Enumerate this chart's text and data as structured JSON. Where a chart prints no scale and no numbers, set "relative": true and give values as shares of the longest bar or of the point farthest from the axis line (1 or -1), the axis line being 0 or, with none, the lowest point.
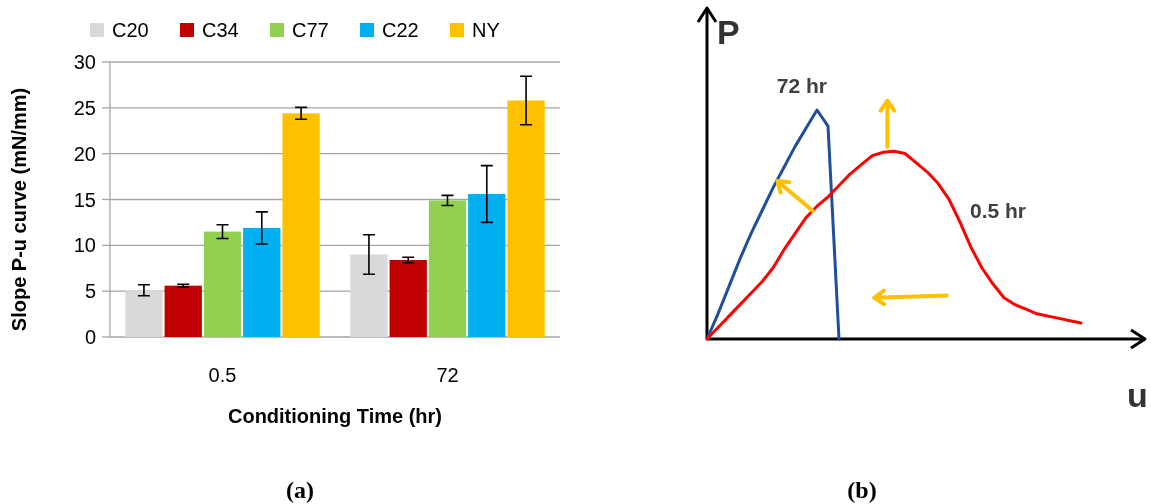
{
  "chart_data": [
    {
      "type": "bar",
      "categories": [
        "0.5",
        "72"
      ],
      "xlabel": "Conditioning Time (hr)",
      "ylabel": "Slope P-u curve (mN/mm)",
      "ylim": [
        0,
        30
      ],
      "yticks": [
        0,
        5,
        10,
        15,
        20,
        25,
        30
      ],
      "grid": "y",
      "legend": "top",
      "annotations": [
        "(a)"
      ],
      "series": [
        {
          "name": "C20",
          "color": "#d9d9d9",
          "values": [
            5.1,
            9.0
          ],
          "errors": [
            0.6,
            2.15
          ]
        },
        {
          "name": "C34",
          "color": "#c00000",
          "values": [
            5.6,
            8.4
          ],
          "errors": [
            0.15,
            0.3
          ]
        },
        {
          "name": "C77",
          "color": "#92d050",
          "values": [
            11.5,
            14.9
          ],
          "errors": [
            0.75,
            0.55
          ]
        },
        {
          "name": "C22",
          "color": "#00b0f0",
          "values": [
            11.9,
            15.6
          ],
          "errors": [
            1.75,
            3.1
          ]
        },
        {
          "name": "NY",
          "color": "#ffc000",
          "values": [
            24.4,
            25.8
          ],
          "errors": [
            0.65,
            2.65
          ]
        }
      ]
    },
    {
      "type": "line",
      "relative": true,
      "categories": [
        null,
        null,
        null,
        null,
        null,
        null,
        null,
        null,
        null,
        null,
        null,
        null,
        null,
        null,
        null,
        null,
        null,
        null,
        null,
        null,
        null,
        null,
        null,
        null,
        null,
        null,
        null,
        null,
        null,
        null,
        null,
        null,
        null,
        null,
        null
      ],
      "xlabel": "u",
      "ylabel": "P",
      "marker": "none",
      "annotations": [
        "(b)"
      ],
      "series": [
        {
          "name": "72 hr",
          "color": "#1f4e9c",
          "values": [
            0,
            0.11,
            0.23,
            0.35,
            0.46,
            0.56,
            0.66,
            0.75,
            0.84,
            0.92,
            1,
            0.93,
            0,
            null,
            null,
            null,
            null,
            null,
            null,
            null,
            null,
            null,
            null,
            null,
            null,
            null,
            null,
            null,
            null,
            null,
            null,
            null,
            null,
            null,
            null
          ]
        },
        {
          "name": "0.5 hr",
          "color": "#ff0000",
          "values": [
            0,
            0.05,
            0.1,
            0.15,
            0.2,
            0.25,
            0.31,
            0.39,
            0.46,
            0.53,
            0.58,
            0.62,
            0.67,
            0.72,
            0.76,
            0.8,
            0.815,
            0.82,
            0.81,
            0.77,
            0.73,
            0.68,
            0.61,
            0.51,
            0.4,
            0.31,
            0.24,
            0.18,
            0.15,
            0.13,
            0.11,
            0.1,
            0.09,
            0.08,
            0.07
          ]
        }
      ]
    }
  ]
}
